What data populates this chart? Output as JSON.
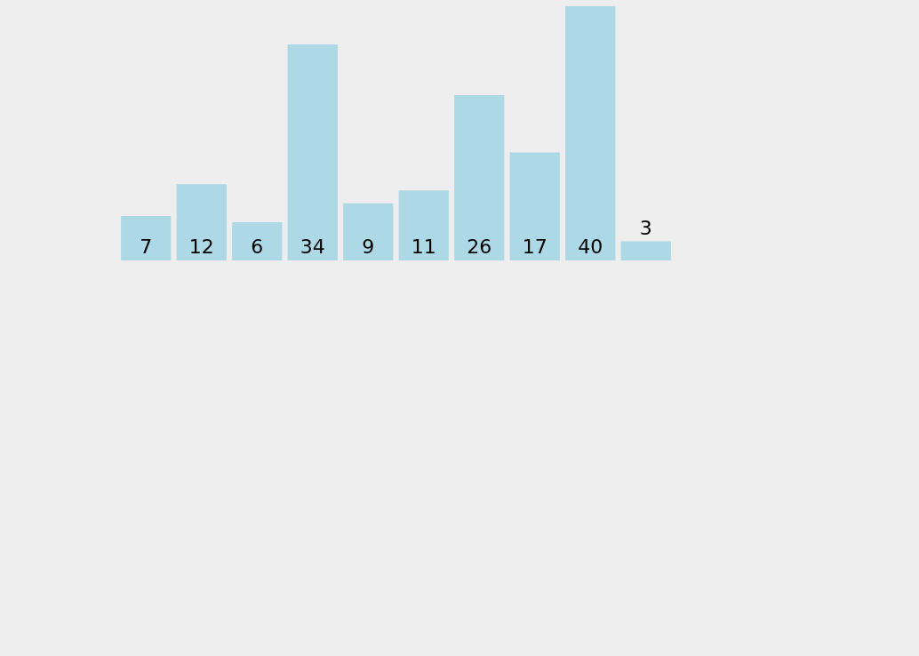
{
  "chart_data": {
    "type": "bar",
    "categories": [
      null,
      null,
      null,
      null,
      null,
      null,
      null,
      null,
      null,
      null
    ],
    "values": [
      7,
      12,
      6,
      34,
      9,
      11,
      26,
      17,
      40,
      3
    ],
    "color": "#add8e6",
    "data_labels": true
  }
}
